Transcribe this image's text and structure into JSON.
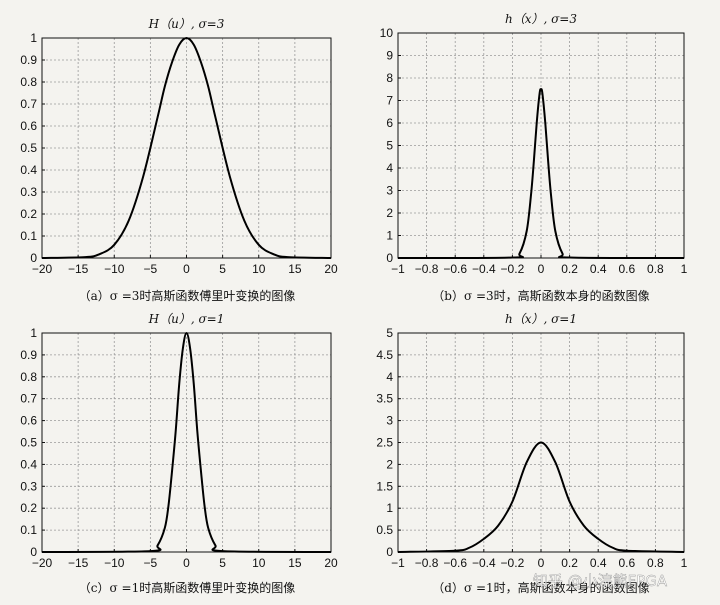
{
  "chart_data": [
    {
      "type": "line",
      "title": "H（u）, σ=3",
      "caption": "（a）σ =3时高斯函数傅里叶变换的图像",
      "xlim": [
        -20,
        20
      ],
      "ylim": [
        0,
        1
      ],
      "xticks": [
        -20,
        -15,
        -10,
        -5,
        0,
        5,
        10,
        15,
        20
      ],
      "yticks": [
        0,
        0.1,
        0.2,
        0.3,
        0.4,
        0.5,
        0.6,
        0.7,
        0.8,
        0.9,
        1
      ],
      "xtick_labels": [
        "−20",
        "−15",
        "−10",
        "−5",
        "0",
        "5",
        "10",
        "15",
        "20"
      ],
      "ytick_labels": [
        "0",
        "0.1",
        "0.2",
        "0.3",
        "0.4",
        "0.5",
        "0.6",
        "0.7",
        "0.8",
        "0.9",
        "1"
      ],
      "grid": true,
      "series": [
        {
          "x": [
            -20,
            -14,
            -12,
            -10,
            -8,
            -6,
            -4,
            -3,
            -2,
            -1,
            0,
            1,
            2,
            3,
            4,
            6,
            8,
            10,
            12,
            14,
            20
          ],
          "y": [
            0,
            0.004,
            0.018,
            0.06,
            0.17,
            0.37,
            0.64,
            0.78,
            0.89,
            0.97,
            1,
            0.97,
            0.89,
            0.78,
            0.64,
            0.37,
            0.17,
            0.06,
            0.018,
            0.004,
            0
          ]
        }
      ]
    },
    {
      "type": "line",
      "title": "h（x）, σ=3",
      "caption": "（b）σ =3时，高斯函数本身的函数图像",
      "xlim": [
        -1,
        1
      ],
      "ylim": [
        0,
        10
      ],
      "xticks": [
        -1,
        -0.8,
        -0.6,
        -0.4,
        -0.2,
        0,
        0.2,
        0.4,
        0.6,
        0.8,
        1
      ],
      "yticks": [
        0,
        1,
        2,
        3,
        4,
        5,
        6,
        7,
        8,
        9,
        10
      ],
      "xtick_labels": [
        "−1",
        "−0.8",
        "−0.6",
        "−0.4",
        "−0.2",
        "0",
        "0.2",
        "0.4",
        "0.6",
        "0.8",
        "1"
      ],
      "ytick_labels": [
        "0",
        "1",
        "2",
        "3",
        "4",
        "5",
        "6",
        "7",
        "8",
        "9",
        "10"
      ],
      "grid": true,
      "series": [
        {
          "x": [
            -1,
            -0.2,
            -0.15,
            -0.1,
            -0.07,
            -0.05,
            -0.03,
            -0.01,
            0,
            0.01,
            0.03,
            0.05,
            0.07,
            0.1,
            0.15,
            0.2,
            1
          ],
          "y": [
            0,
            0.02,
            0.2,
            1.2,
            2.8,
            4.3,
            6.0,
            7.3,
            7.5,
            7.3,
            6.0,
            4.3,
            2.8,
            1.2,
            0.2,
            0.02,
            0
          ]
        }
      ]
    },
    {
      "type": "line",
      "title": "H（u）, σ=1",
      "caption": "（c）σ =1时高斯函数傅里叶变换的图像",
      "xlim": [
        -20,
        20
      ],
      "ylim": [
        0,
        1
      ],
      "xticks": [
        -20,
        -15,
        -10,
        -5,
        0,
        5,
        10,
        15,
        20
      ],
      "yticks": [
        0,
        0.1,
        0.2,
        0.3,
        0.4,
        0.5,
        0.6,
        0.7,
        0.8,
        0.9,
        1
      ],
      "xtick_labels": [
        "−20",
        "−15",
        "−10",
        "−5",
        "0",
        "5",
        "10",
        "15",
        "20"
      ],
      "ytick_labels": [
        "0",
        "0.1",
        "0.2",
        "0.3",
        "0.4",
        "0.5",
        "0.6",
        "0.7",
        "0.8",
        "0.9",
        "1"
      ],
      "grid": true,
      "series": [
        {
          "x": [
            -20,
            -5,
            -4,
            -3,
            -2.5,
            -2,
            -1.5,
            -1,
            -0.5,
            0,
            0.5,
            1,
            1.5,
            2,
            2.5,
            3,
            4,
            5,
            20
          ],
          "y": [
            0,
            0.004,
            0.03,
            0.11,
            0.21,
            0.37,
            0.55,
            0.77,
            0.93,
            1,
            0.93,
            0.77,
            0.55,
            0.37,
            0.21,
            0.11,
            0.03,
            0.004,
            0
          ]
        }
      ]
    },
    {
      "type": "line",
      "title": "h（x）, σ=1",
      "caption": "（d）σ =1时，高斯函数本身的函数图像",
      "xlim": [
        -1,
        1
      ],
      "ylim": [
        0,
        5
      ],
      "xticks": [
        -1,
        -0.8,
        -0.6,
        -0.4,
        -0.2,
        0,
        0.2,
        0.4,
        0.6,
        0.8,
        1
      ],
      "yticks": [
        0,
        0.5,
        1,
        1.5,
        2,
        2.5,
        3,
        3.5,
        4,
        4.5,
        5
      ],
      "xtick_labels": [
        "−1",
        "−0.8",
        "−0.6",
        "−0.4",
        "−0.2",
        "0",
        "0.2",
        "0.4",
        "0.6",
        "0.8",
        "1"
      ],
      "ytick_labels": [
        "0",
        "0.5",
        "1",
        "1.5",
        "2",
        "2.5",
        "3",
        "3.5",
        "4",
        "4.5",
        "5"
      ],
      "grid": true,
      "series": [
        {
          "x": [
            -1,
            -0.6,
            -0.5,
            -0.4,
            -0.3,
            -0.2,
            -0.1,
            0,
            0.1,
            0.2,
            0.3,
            0.4,
            0.5,
            0.6,
            1
          ],
          "y": [
            0,
            0.03,
            0.1,
            0.3,
            0.6,
            1.15,
            2.05,
            2.5,
            2.05,
            1.15,
            0.6,
            0.3,
            0.1,
            0.03,
            0
          ]
        }
      ]
    }
  ],
  "watermark": "知乎 @小浣熊FPGA"
}
